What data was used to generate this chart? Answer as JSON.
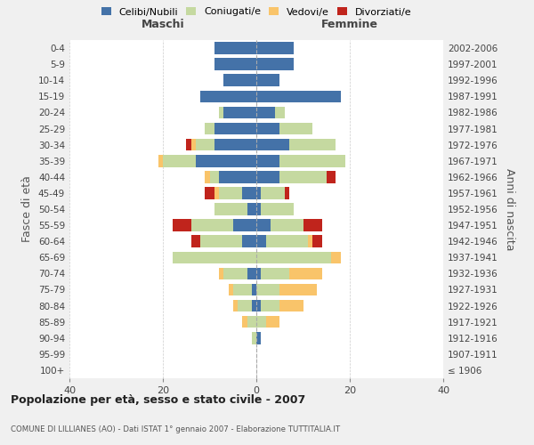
{
  "age_groups": [
    "100+",
    "95-99",
    "90-94",
    "85-89",
    "80-84",
    "75-79",
    "70-74",
    "65-69",
    "60-64",
    "55-59",
    "50-54",
    "45-49",
    "40-44",
    "35-39",
    "30-34",
    "25-29",
    "20-24",
    "15-19",
    "10-14",
    "5-9",
    "0-4"
  ],
  "birth_years": [
    "≤ 1906",
    "1907-1911",
    "1912-1916",
    "1917-1921",
    "1922-1926",
    "1927-1931",
    "1932-1936",
    "1937-1941",
    "1942-1946",
    "1947-1951",
    "1952-1956",
    "1957-1961",
    "1962-1966",
    "1967-1971",
    "1972-1976",
    "1977-1981",
    "1982-1986",
    "1987-1991",
    "1992-1996",
    "1997-2001",
    "2002-2006"
  ],
  "maschi": {
    "celibi": [
      0,
      0,
      0,
      0,
      1,
      1,
      2,
      0,
      3,
      5,
      2,
      3,
      8,
      13,
      9,
      9,
      7,
      12,
      7,
      9,
      9
    ],
    "coniugati": [
      0,
      0,
      1,
      2,
      3,
      4,
      5,
      18,
      9,
      9,
      7,
      5,
      2,
      7,
      4,
      2,
      1,
      0,
      0,
      0,
      0
    ],
    "vedovi": [
      0,
      0,
      0,
      1,
      1,
      1,
      1,
      0,
      0,
      0,
      0,
      1,
      1,
      1,
      1,
      0,
      0,
      0,
      0,
      0,
      0
    ],
    "divorziati": [
      0,
      0,
      0,
      0,
      0,
      0,
      0,
      0,
      2,
      4,
      0,
      2,
      0,
      0,
      1,
      0,
      0,
      0,
      0,
      0,
      0
    ]
  },
  "femmine": {
    "nubili": [
      0,
      0,
      1,
      0,
      1,
      0,
      1,
      0,
      2,
      3,
      1,
      1,
      5,
      5,
      7,
      5,
      4,
      18,
      5,
      8,
      8
    ],
    "coniugate": [
      0,
      0,
      0,
      2,
      4,
      5,
      6,
      16,
      9,
      7,
      7,
      5,
      10,
      14,
      10,
      7,
      2,
      0,
      0,
      0,
      0
    ],
    "vedove": [
      0,
      0,
      0,
      3,
      5,
      8,
      7,
      2,
      1,
      0,
      0,
      0,
      0,
      0,
      0,
      0,
      0,
      0,
      0,
      0,
      0
    ],
    "divorziate": [
      0,
      0,
      0,
      0,
      0,
      0,
      0,
      0,
      2,
      4,
      0,
      1,
      2,
      0,
      0,
      0,
      0,
      0,
      0,
      0,
      0
    ]
  },
  "colors": {
    "celibi_nubili": "#4472a8",
    "coniugati": "#c5d9a0",
    "vedovi": "#f9c46a",
    "divorziati": "#c0241c"
  },
  "xlim": [
    -40,
    40
  ],
  "xticks": [
    -40,
    -20,
    0,
    20,
    40
  ],
  "xticklabels": [
    "40",
    "20",
    "0",
    "20",
    "40"
  ],
  "title": "Popolazione per età, sesso e stato civile - 2007",
  "subtitle": "COMUNE DI LILLIANES (AO) - Dati ISTAT 1° gennaio 2007 - Elaborazione TUTTITALIA.IT",
  "ylabel_left": "Fasce di età",
  "ylabel_right": "Anni di nascita",
  "maschi_label": "Maschi",
  "femmine_label": "Femmine",
  "legend_labels": [
    "Celibi/Nubili",
    "Coniugati/e",
    "Vedovi/e",
    "Divorziati/e"
  ],
  "bg_color": "#f0f0f0",
  "plot_bg": "#ffffff"
}
